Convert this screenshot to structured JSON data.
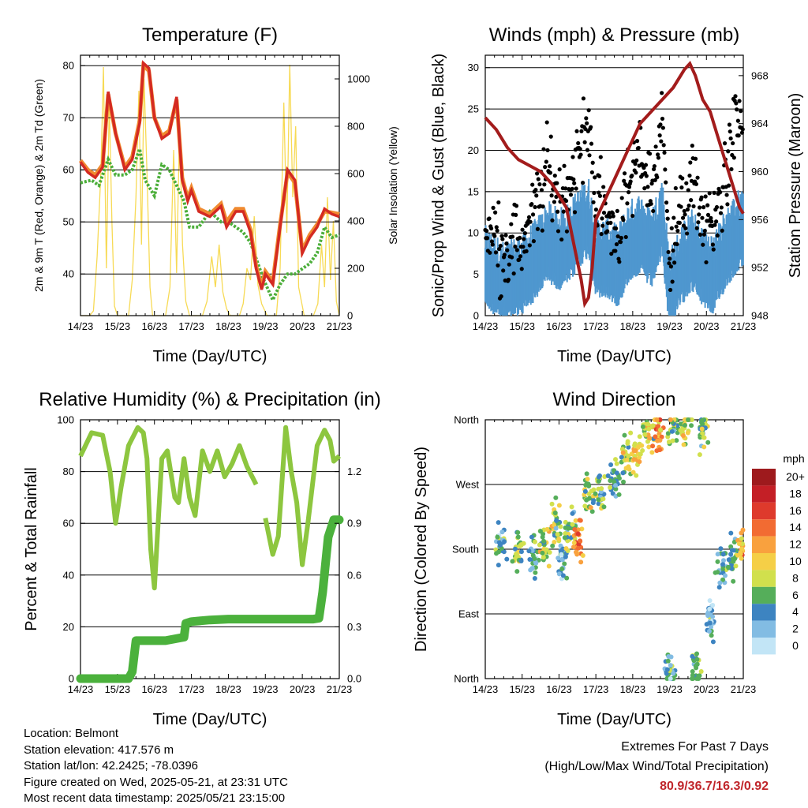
{
  "x_tick_labels": [
    "14/23",
    "15/23",
    "16/23",
    "17/23",
    "18/23",
    "19/23",
    "20/23",
    "21/23"
  ],
  "colors": {
    "temp_2m": "#d42a22",
    "temp_9m": "#f08a30",
    "dewpoint": "#4cae3a",
    "solar": "#f7da55",
    "gust": "#000000",
    "wind": "#4f97cf",
    "pressure": "#a31c1c",
    "humidity": "#8dc63f",
    "precip": "#4bb13c",
    "extremes": "#c0262b"
  },
  "chart_data": [
    {
      "type": "line",
      "title": "Temperature (F)",
      "xlabel": "Time (Day/UTC)",
      "ylabel": "2m & 9m T (Red, Orange) & 2m Td (Green)",
      "y2label": "Solar Insolation (Yellow)",
      "ylim": [
        32,
        82
      ],
      "y_ticks": [
        40,
        50,
        60,
        70,
        80
      ],
      "y2lim": [
        0,
        1100
      ],
      "y2_ticks": [
        0,
        200,
        400,
        600,
        800,
        1000
      ],
      "grid": true,
      "series": [
        {
          "key": "temp_2m",
          "x": [
            14.0,
            14.2,
            14.4,
            14.6,
            14.75,
            14.95,
            15.2,
            15.4,
            15.6,
            15.7,
            15.85,
            16.0,
            16.2,
            16.4,
            16.6,
            16.75,
            16.9,
            17.0,
            17.2,
            17.5,
            17.8,
            17.95,
            18.2,
            18.4,
            18.6,
            18.75,
            18.9,
            19.0,
            19.2,
            19.4,
            19.6,
            19.8,
            20.0,
            20.2,
            20.4,
            20.6,
            20.8,
            21.0
          ],
          "y": [
            61.5,
            59.5,
            58.5,
            60.5,
            75,
            67,
            60,
            62,
            69,
            80.5,
            79.5,
            70,
            66,
            67,
            74,
            58,
            54,
            56,
            52,
            51,
            53,
            49,
            52,
            52,
            48,
            41,
            37,
            40,
            38,
            49,
            60,
            58,
            44,
            47,
            49,
            52.5,
            51.5,
            51
          ]
        },
        {
          "key": "temp_9m",
          "x": [
            14.0,
            14.2,
            14.4,
            14.6,
            14.75,
            14.95,
            15.2,
            15.4,
            15.6,
            15.7,
            15.85,
            16.0,
            16.2,
            16.4,
            16.6,
            16.75,
            16.9,
            17.0,
            17.2,
            17.5,
            17.8,
            17.95,
            18.2,
            18.4,
            18.6,
            18.75,
            18.9,
            19.0,
            19.2,
            19.4,
            19.6,
            19.8,
            20.0,
            20.2,
            20.4,
            20.6,
            20.8,
            21.0
          ],
          "y": [
            61.8,
            60,
            59,
            61,
            74.5,
            67,
            60.5,
            62.5,
            69.5,
            80,
            79,
            70,
            66.5,
            67.5,
            73.5,
            58.5,
            54.5,
            56.5,
            52.5,
            51.5,
            53.5,
            50,
            52.5,
            52.5,
            48.5,
            41.5,
            37.5,
            40.5,
            38.5,
            49.5,
            59.5,
            57.5,
            44.5,
            47.5,
            49.5,
            52,
            51.8,
            51.5
          ]
        },
        {
          "key": "dewpoint",
          "x": [
            14.0,
            14.3,
            14.5,
            14.75,
            14.95,
            15.2,
            15.4,
            15.6,
            15.75,
            16.0,
            16.2,
            16.4,
            16.6,
            16.8,
            16.95,
            17.2,
            17.5,
            17.8,
            18.0,
            18.2,
            18.4,
            18.6,
            18.8,
            18.95,
            19.2,
            19.4,
            19.6,
            19.8,
            20.0,
            20.2,
            20.4,
            20.6,
            20.8,
            21.0
          ],
          "y": [
            57.5,
            58,
            57,
            62,
            59,
            59,
            60,
            64,
            58,
            55,
            61,
            60,
            57,
            54,
            49,
            49,
            52,
            50,
            50,
            49,
            48,
            46,
            42,
            39,
            35,
            38,
            40,
            40,
            41,
            42,
            44,
            49,
            47,
            47.5
          ]
        },
        {
          "key": "solar",
          "x": [
            14.0,
            14.25,
            14.35,
            14.45,
            14.55,
            14.62,
            14.7,
            14.78,
            14.85,
            14.92,
            15.0,
            15.1,
            15.3,
            15.4,
            15.5,
            15.58,
            15.65,
            15.72,
            15.8,
            15.88,
            15.95,
            16.05,
            16.3,
            16.42,
            16.52,
            16.6,
            16.68,
            16.76,
            16.85,
            16.95,
            17.05,
            17.3,
            17.42,
            17.55,
            17.65,
            17.75,
            17.85,
            17.95,
            18.05,
            18.3,
            18.4,
            18.5,
            18.6,
            18.7,
            18.8,
            18.9,
            19.05,
            19.3,
            19.4,
            19.5,
            19.58,
            19.66,
            19.74,
            19.82,
            19.9,
            20.05,
            20.3,
            20.42,
            20.52,
            20.6,
            20.68,
            20.76,
            20.84,
            20.92,
            21.0
          ],
          "y": [
            0,
            0,
            20,
            250,
            600,
            1050,
            200,
            900,
            400,
            40,
            0,
            0,
            0,
            150,
            500,
            950,
            300,
            1000,
            600,
            120,
            0,
            0,
            0,
            120,
            700,
            180,
            800,
            300,
            60,
            0,
            0,
            0,
            60,
            250,
            120,
            300,
            100,
            30,
            0,
            0,
            50,
            200,
            150,
            420,
            130,
            50,
            0,
            0,
            200,
            900,
            350,
            1060,
            500,
            800,
            120,
            0,
            0,
            50,
            300,
            120,
            500,
            150,
            400,
            60,
            0
          ]
        },
        {
          "key": "gust",
          "x": [
            14.0,
            14.5,
            15.0,
            15.4,
            15.7,
            16.0,
            16.3,
            16.6,
            16.8,
            17.0,
            17.3,
            17.6,
            17.9,
            18.2,
            18.5,
            18.8,
            19.0,
            19.3,
            19.6,
            19.9,
            20.2,
            20.5,
            20.8,
            21.0
          ],
          "y": [
            11,
            8,
            9,
            13,
            18,
            14,
            16,
            20,
            24,
            14,
            12,
            10,
            15,
            20,
            15,
            23,
            8,
            12,
            16,
            12,
            10,
            17,
            23,
            24
          ]
        },
        {
          "key": "wind",
          "x": [
            14.0,
            14.5,
            15.0,
            15.4,
            15.7,
            16.0,
            16.3,
            16.6,
            16.8,
            17.0,
            17.3,
            17.6,
            17.9,
            18.2,
            18.5,
            18.8,
            19.0,
            19.3,
            19.6,
            19.9,
            20.2,
            20.5,
            20.8,
            21.0
          ],
          "y": [
            6,
            4,
            5,
            7,
            9,
            8,
            9,
            11,
            12,
            7,
            7,
            6,
            9,
            10,
            8,
            12,
            3,
            6,
            8,
            6,
            5,
            8,
            10,
            11
          ]
        }
      ]
    },
    {
      "type": "line",
      "title": "Winds (mph) & Pressure (mb)",
      "xlabel": "Time (Day/UTC)",
      "ylabel": "Sonic/Prop Wind & Gust (Blue, Black)",
      "y2label": "Station Pressure (Maroon)",
      "ylim": [
        0,
        31.5
      ],
      "y_ticks": [
        0,
        5,
        10,
        15,
        20,
        25,
        30
      ],
      "y2lim": [
        948,
        969.7
      ],
      "y2_ticks": [
        948,
        952,
        956,
        960,
        964,
        968
      ],
      "grid": true,
      "series": [
        {
          "key": "pressure",
          "x": [
            14.0,
            14.3,
            14.6,
            14.9,
            15.2,
            15.5,
            15.8,
            16.0,
            16.2,
            16.4,
            16.6,
            16.7,
            16.8,
            16.9,
            17.0,
            17.3,
            17.6,
            17.9,
            18.2,
            18.5,
            18.8,
            19.1,
            19.4,
            19.55,
            19.7,
            19.9,
            20.1,
            20.3,
            20.5,
            20.7,
            20.9,
            21.0
          ],
          "y": [
            964.5,
            963.5,
            962,
            961,
            960.5,
            960,
            959,
            958,
            957,
            954,
            951,
            949,
            949.5,
            952,
            956,
            958,
            960,
            962,
            964,
            965,
            966,
            967,
            968.5,
            969,
            968,
            966,
            965,
            963,
            961,
            959,
            957,
            956.5
          ]
        }
      ]
    },
    {
      "type": "line",
      "title": "Relative Humidity (%) & Precipitation (in)",
      "xlabel": "Time (Day/UTC)",
      "ylabel": "Percent & Total Rainfall",
      "ylim": [
        0,
        100
      ],
      "y_ticks": [
        0,
        20,
        40,
        60,
        80,
        100
      ],
      "y2lim": [
        0,
        1.5
      ],
      "y2_ticks": [
        "0.0",
        "0.3",
        "0.6",
        "0.9",
        "1.2"
      ],
      "grid": true,
      "series": [
        {
          "key": "humidity",
          "x": [
            14.0,
            14.3,
            14.6,
            14.8,
            14.95,
            15.1,
            15.3,
            15.55,
            15.7,
            15.8,
            15.9,
            16.0,
            16.2,
            16.35,
            16.55,
            16.65,
            16.8,
            16.95,
            17.1,
            17.3,
            17.5,
            17.7,
            17.9,
            18.1,
            18.3,
            18.5,
            18.75,
            18.85,
            19.0,
            19.2,
            19.35,
            19.55,
            19.7,
            19.85,
            20.0,
            20.15,
            20.4,
            20.6,
            20.75,
            20.85,
            21.0
          ],
          "y": [
            86,
            95,
            94,
            80,
            60,
            74,
            90,
            97,
            95,
            85,
            50,
            35,
            85,
            88,
            70,
            68,
            85,
            70,
            63,
            88,
            80,
            88,
            78,
            83,
            90,
            82,
            75,
            null,
            62,
            48,
            55,
            97,
            80,
            68,
            44,
            60,
            90,
            96,
            92,
            84,
            86
          ]
        },
        {
          "key": "precip",
          "x": [
            14.0,
            15.3,
            15.4,
            15.5,
            16.3,
            16.8,
            16.85,
            17.0,
            17.5,
            18.0,
            19.0,
            19.5,
            20.0,
            20.3,
            20.45,
            20.55,
            20.7,
            20.85,
            20.95,
            21.0
          ],
          "y": [
            0,
            0,
            0.04,
            0.22,
            0.22,
            0.24,
            0.32,
            0.33,
            0.34,
            0.345,
            0.345,
            0.345,
            0.345,
            0.345,
            0.35,
            0.5,
            0.82,
            0.92,
            0.92,
            0.92
          ]
        }
      ]
    },
    {
      "type": "scatter",
      "title": "Wind Direction",
      "xlabel": "Time (Day/UTC)",
      "ylabel": "Direction (Colored By Speed)",
      "ylim": [
        0,
        360
      ],
      "y_tick_values": [
        0,
        90,
        180,
        270,
        360
      ],
      "y_tick_labels": [
        "North",
        "East",
        "South",
        "West",
        "North"
      ],
      "grid": true,
      "legend": {
        "placement": "right",
        "title": "mph",
        "labels": [
          "20+",
          "18",
          "16",
          "14",
          "12",
          "10",
          "8",
          "6",
          "4",
          "2",
          "0"
        ],
        "colors": [
          "#9e1a1d",
          "#c41f26",
          "#de3a2c",
          "#f26b32",
          "#f9a13e",
          "#f5cf47",
          "#d1e04d",
          "#55ae5a",
          "#3d84c1",
          "#82bce3",
          "#c2e5f6"
        ]
      },
      "direction_clusters": [
        {
          "x": 14.4,
          "y": 185,
          "speed": 4
        },
        {
          "x": 14.9,
          "y": 175,
          "speed": 6
        },
        {
          "x": 15.3,
          "y": 170,
          "speed": 5
        },
        {
          "x": 15.6,
          "y": 185,
          "speed": 8
        },
        {
          "x": 15.9,
          "y": 215,
          "speed": 7
        },
        {
          "x": 16.1,
          "y": 165,
          "speed": 4
        },
        {
          "x": 16.3,
          "y": 205,
          "speed": 6
        },
        {
          "x": 16.55,
          "y": 190,
          "speed": 13
        },
        {
          "x": 16.8,
          "y": 255,
          "speed": 7
        },
        {
          "x": 17.1,
          "y": 265,
          "speed": 6
        },
        {
          "x": 17.5,
          "y": 275,
          "speed": 5
        },
        {
          "x": 17.8,
          "y": 305,
          "speed": 8
        },
        {
          "x": 18.1,
          "y": 315,
          "speed": 10
        },
        {
          "x": 18.4,
          "y": 335,
          "speed": 9
        },
        {
          "x": 18.7,
          "y": 350,
          "speed": 12
        },
        {
          "x": 19.0,
          "y": 12,
          "speed": 4
        },
        {
          "x": 19.1,
          "y": 350,
          "speed": 8
        },
        {
          "x": 19.45,
          "y": 355,
          "speed": 8
        },
        {
          "x": 19.7,
          "y": 15,
          "speed": 6
        },
        {
          "x": 19.9,
          "y": 350,
          "speed": 6
        },
        {
          "x": 20.1,
          "y": 80,
          "speed": 2
        },
        {
          "x": 20.4,
          "y": 160,
          "speed": 4
        },
        {
          "x": 20.7,
          "y": 170,
          "speed": 5
        },
        {
          "x": 20.95,
          "y": 180,
          "speed": 11
        }
      ]
    }
  ],
  "info": {
    "location": "Location: Belmont",
    "elevation": "Station elevation: 417.576 m",
    "latlon": "Station lat/lon: 42.2425; -78.0396",
    "created": "Figure created on Wed, 2025-05-21, at 23:31 UTC",
    "recent": "Most recent data timestamp: 2025/05/21 23:15:00"
  },
  "extremes": {
    "title": "Extremes For Past 7 Days",
    "subtitle": "(High/Low/Max Wind/Total Precipitation)",
    "values": "80.9/36.7/16.3/0.92"
  }
}
